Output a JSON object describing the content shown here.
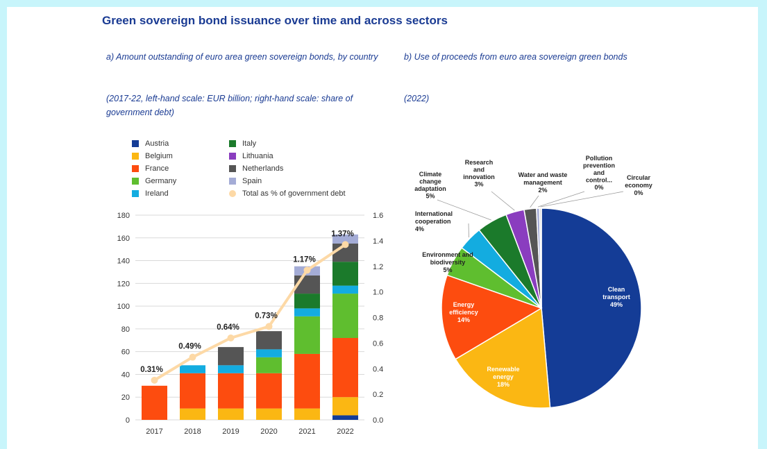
{
  "title": "Green sovereign bond issuance over time and across sectors",
  "panel_a": {
    "subtitle": "a) Amount outstanding of euro area green sovereign bonds, by country",
    "units": "(2017-22, left-hand scale: EUR billion; right-hand scale: share of government debt)"
  },
  "panel_b": {
    "subtitle": "b) Use of proceeds from euro area sovereign green bonds",
    "units": "(2022)"
  },
  "legend": [
    {
      "label": "Austria",
      "color": "#143c96",
      "kind": "square"
    },
    {
      "label": "Italy",
      "color": "#1b7a2b",
      "kind": "square"
    },
    {
      "label": "Belgium",
      "color": "#fbb713",
      "kind": "square"
    },
    {
      "label": "Lithuania",
      "color": "#8a3dbf",
      "kind": "square"
    },
    {
      "label": "France",
      "color": "#fd4c0f",
      "kind": "square"
    },
    {
      "label": "Netherlands",
      "color": "#555555",
      "kind": "square"
    },
    {
      "label": "Germany",
      "color": "#5fbe2f",
      "kind": "square"
    },
    {
      "label": "Spain",
      "color": "#a4acd6",
      "kind": "square"
    },
    {
      "label": "Ireland",
      "color": "#13ace0",
      "kind": "square"
    },
    {
      "label": "Total as % of government debt",
      "color": "#fdd9a6",
      "kind": "dot"
    }
  ],
  "chart_data": [
    {
      "type": "bar",
      "stacked": true,
      "categories": [
        "2017",
        "2018",
        "2019",
        "2020",
        "2021",
        "2022"
      ],
      "series": [
        {
          "name": "Austria",
          "color": "#143c96",
          "values": [
            0,
            0,
            0,
            0,
            0,
            4
          ]
        },
        {
          "name": "Belgium",
          "color": "#fbb713",
          "values": [
            0,
            10,
            10,
            10,
            10,
            16
          ]
        },
        {
          "name": "France",
          "color": "#fd4c0f",
          "values": [
            30,
            31,
            31,
            31,
            48,
            52
          ]
        },
        {
          "name": "Germany",
          "color": "#5fbe2f",
          "values": [
            0,
            0,
            0,
            14,
            33,
            39
          ]
        },
        {
          "name": "Ireland",
          "color": "#13ace0",
          "values": [
            0,
            7,
            7,
            7,
            7,
            7
          ]
        },
        {
          "name": "Italy",
          "color": "#1b7a2b",
          "values": [
            0,
            0,
            0,
            0,
            13,
            21
          ]
        },
        {
          "name": "Lithuania",
          "color": "#8a3dbf",
          "values": [
            0,
            0,
            0,
            0,
            0,
            0
          ]
        },
        {
          "name": "Netherlands",
          "color": "#555555",
          "values": [
            0,
            0,
            16,
            16,
            16,
            16
          ]
        },
        {
          "name": "Spain",
          "color": "#a4acd6",
          "values": [
            0,
            0,
            0,
            0,
            8,
            8
          ]
        }
      ],
      "line": {
        "name": "Total as % of government debt",
        "color": "#fdd9a6",
        "values": [
          0.31,
          0.49,
          0.64,
          0.73,
          1.17,
          1.37
        ],
        "labels": [
          "0.31%",
          "0.49%",
          "0.64%",
          "0.73%",
          "1.17%",
          "1.37%"
        ]
      },
      "ylim": [
        0,
        180
      ],
      "yticks": [
        "0",
        "20",
        "40",
        "60",
        "80",
        "100",
        "120",
        "140",
        "160",
        "180"
      ],
      "y2lim": [
        0,
        1.6
      ],
      "y2ticks": [
        "0.0",
        "0.2",
        "0.4",
        "0.6",
        "0.8",
        "1.0",
        "1.2",
        "1.4",
        "1.6"
      ],
      "grid": true,
      "legend_position": "top"
    },
    {
      "type": "pie",
      "slices": [
        {
          "label": "Clean transport",
          "value": 49,
          "pct": "49%",
          "color": "#143c96"
        },
        {
          "label": "Renewable energy",
          "value": 18,
          "pct": "18%",
          "color": "#fbb713"
        },
        {
          "label": "Energy efficiency",
          "value": 14,
          "pct": "14%",
          "color": "#fd4c0f"
        },
        {
          "label": "Environment and biodiversity",
          "value": 5,
          "pct": "5%",
          "color": "#5fbe2f"
        },
        {
          "label": "International cooperation",
          "value": 4,
          "pct": "4%",
          "color": "#13ace0"
        },
        {
          "label": "Climate change adaptation",
          "value": 5,
          "pct": "5%",
          "color": "#1b7a2b"
        },
        {
          "label": "Research and innovation",
          "value": 3,
          "pct": "3%",
          "color": "#8a3dbf"
        },
        {
          "label": "Water and waste management",
          "value": 2,
          "pct": "2%",
          "color": "#555555"
        },
        {
          "label": "Pollution prevention and control...",
          "value": 0.5,
          "pct": "0%",
          "color": "#a4acd6"
        },
        {
          "label": "Circular economy",
          "value": 0.3,
          "pct": "0%",
          "color": "#d9d9d9"
        }
      ]
    }
  ]
}
